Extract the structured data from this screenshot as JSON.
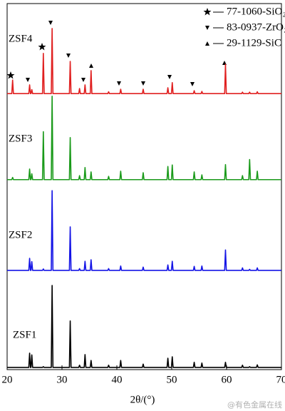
{
  "chart_data": {
    "type": "line",
    "x_label": "2θ/(°)",
    "xlim": [
      20,
      70
    ],
    "xticks": [
      20,
      30,
      40,
      50,
      60,
      70
    ],
    "ylim": [
      0,
      100
    ],
    "phases": [
      "77-1060-SiO₂",
      "83-0937-ZrO₂",
      "29-1129-SiC"
    ],
    "watermark": "@有色金属在线",
    "x": [
      20,
      20.85,
      21.0,
      21.15,
      23.95,
      24.1,
      24.25,
      24.35,
      24.5,
      24.65,
      26.45,
      26.6,
      26.75,
      28.05,
      28.2,
      28.35,
      31.35,
      31.5,
      31.65,
      33.05,
      33.2,
      33.35,
      34.05,
      34.2,
      34.35,
      35.15,
      35.3,
      35.45,
      38.35,
      38.5,
      38.65,
      40.55,
      40.7,
      40.85,
      44.65,
      44.8,
      44.95,
      49.15,
      49.3,
      49.45,
      49.95,
      50.1,
      50.25,
      53.95,
      54.1,
      54.25,
      55.35,
      55.5,
      55.65,
      59.65,
      59.8,
      59.95,
      62.75,
      62.9,
      63.05,
      64.05,
      64.2,
      64.35,
      65.45,
      65.6,
      65.75,
      70
    ],
    "series": [
      {
        "name": "ZSF1",
        "color": "#000000",
        "values": [
          0.6,
          0.6,
          0.6,
          0.6,
          0.6,
          4.5,
          0.6,
          0.6,
          4.0,
          0.6,
          0.6,
          0.8,
          0.6,
          0.6,
          23,
          0.6,
          0.6,
          13.3,
          0.6,
          0.6,
          1.2,
          0.6,
          0.6,
          4.1,
          0.6,
          0.6,
          2.5,
          0.6,
          0.6,
          1.2,
          0.6,
          0.6,
          2.5,
          0.6,
          0.6,
          1.5,
          0.6,
          0.6,
          3.1,
          0.6,
          0.6,
          3.5,
          0.6,
          0.6,
          2.0,
          0.6,
          0.6,
          1.8,
          0.6,
          0.6,
          2.0,
          0.6,
          0.6,
          1.2,
          0.6,
          0.6,
          0.8,
          0.6,
          0.6,
          1.3,
          0.6,
          0.6
        ]
      },
      {
        "name": "ZSF2",
        "color": "#1414e6",
        "values": [
          27.1,
          27.1,
          27.1,
          27.1,
          27.1,
          30.4,
          27.1,
          27.1,
          29.5,
          27.1,
          27.1,
          27.5,
          27.1,
          27.1,
          48.9,
          27.1,
          27.1,
          39,
          27.1,
          27.1,
          27.6,
          27.1,
          27.1,
          29.6,
          27.1,
          27.1,
          30,
          27.1,
          27.1,
          27.6,
          27.1,
          27.1,
          28.3,
          27.1,
          27.1,
          28.0,
          27.1,
          27.1,
          28.6,
          27.1,
          27.1,
          29.6,
          27.1,
          27.1,
          28.2,
          27.1,
          27.1,
          28.3,
          27.1,
          27.1,
          32.7,
          27.1,
          27.1,
          27.8,
          27.1,
          27.1,
          27.4,
          27.1,
          27.1,
          27.8,
          27.1,
          27.1
        ]
      },
      {
        "name": "ZSF3",
        "color": "#1a9a1a",
        "values": [
          51.9,
          51.9,
          52.5,
          51.9,
          51.9,
          54.8,
          51.9,
          51.9,
          53.5,
          51.9,
          51.9,
          65,
          51.9,
          51.9,
          74.7,
          51.9,
          51.9,
          63.4,
          51.9,
          51.9,
          53,
          51.9,
          51.9,
          55.2,
          51.9,
          51.9,
          54,
          51.9,
          51.9,
          52.8,
          51.9,
          51.9,
          54.2,
          51.9,
          51.9,
          53.8,
          51.9,
          51.9,
          55.5,
          51.9,
          51.9,
          55.9,
          51.9,
          51.9,
          54,
          51.9,
          51.9,
          53.2,
          51.9,
          51.9,
          56,
          51.9,
          51.9,
          53,
          51.9,
          51.9,
          57.4,
          51.9,
          51.9,
          54.2,
          51.9,
          51.9
        ]
      },
      {
        "name": "ZSF4",
        "color": "#e02020",
        "values": [
          75.4,
          75.4,
          79.1,
          75.4,
          75.4,
          77.8,
          75.4,
          75.4,
          76.5,
          75.4,
          75.4,
          86.4,
          75.4,
          75.4,
          93.2,
          75.4,
          75.4,
          84.2,
          75.4,
          75.4,
          76.8,
          75.4,
          75.4,
          77.8,
          75.4,
          75.4,
          81.7,
          75.4,
          75.4,
          75.9,
          75.4,
          75.4,
          76.6,
          75.4,
          75.4,
          76.6,
          75.4,
          75.4,
          77.0,
          75.4,
          75.4,
          78.4,
          75.4,
          75.4,
          76.2,
          75.4,
          75.4,
          76.0,
          75.4,
          75.4,
          83.4,
          75.4,
          75.4,
          75.8,
          75.4,
          75.4,
          75.8,
          75.4,
          75.4,
          75.9,
          75.4,
          75.4
        ]
      }
    ]
  }
}
